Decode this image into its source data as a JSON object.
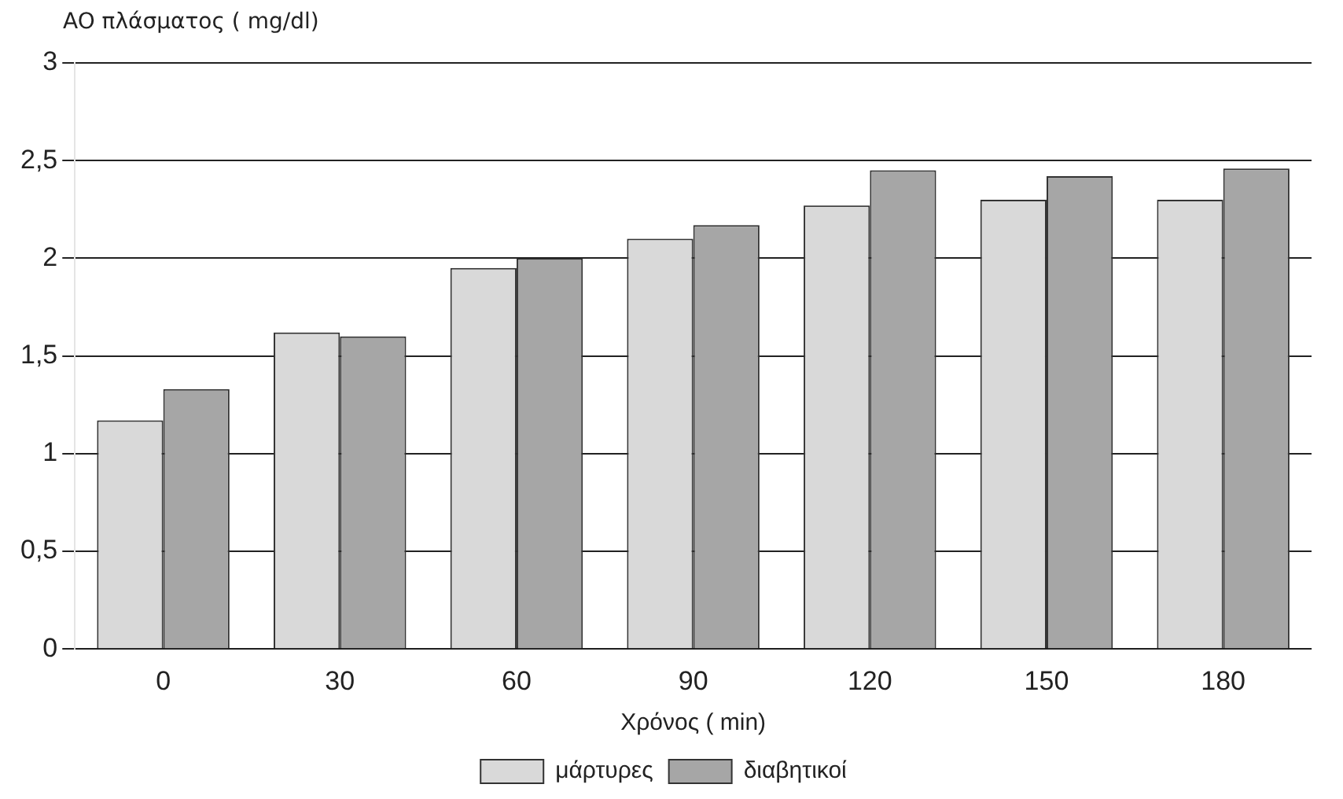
{
  "chart_data": {
    "type": "bar",
    "ylabel": "AO πλάσματος ( mg/dl)",
    "xlabel": "Χρόνος ( min)",
    "categories": [
      "0",
      "30",
      "60",
      "90",
      "120",
      "150",
      "180"
    ],
    "series": [
      {
        "name": "μάρτυρες",
        "color": "#d9d9d9",
        "values": [
          1.17,
          1.62,
          1.95,
          2.1,
          2.27,
          2.3,
          2.3
        ]
      },
      {
        "name": "διαβητικοί",
        "color": "#a6a6a6",
        "values": [
          1.33,
          1.6,
          2.0,
          2.17,
          2.45,
          2.42,
          2.46
        ]
      }
    ],
    "ylim": [
      0,
      3
    ],
    "yticks": [
      0,
      {
        "value": 0.5,
        "label": "0,5"
      },
      1,
      {
        "value": 1.5,
        "label": "1,5"
      },
      2,
      {
        "value": 2.5,
        "label": "2,5"
      },
      3
    ],
    "grid": "y",
    "legend": "bottom"
  }
}
